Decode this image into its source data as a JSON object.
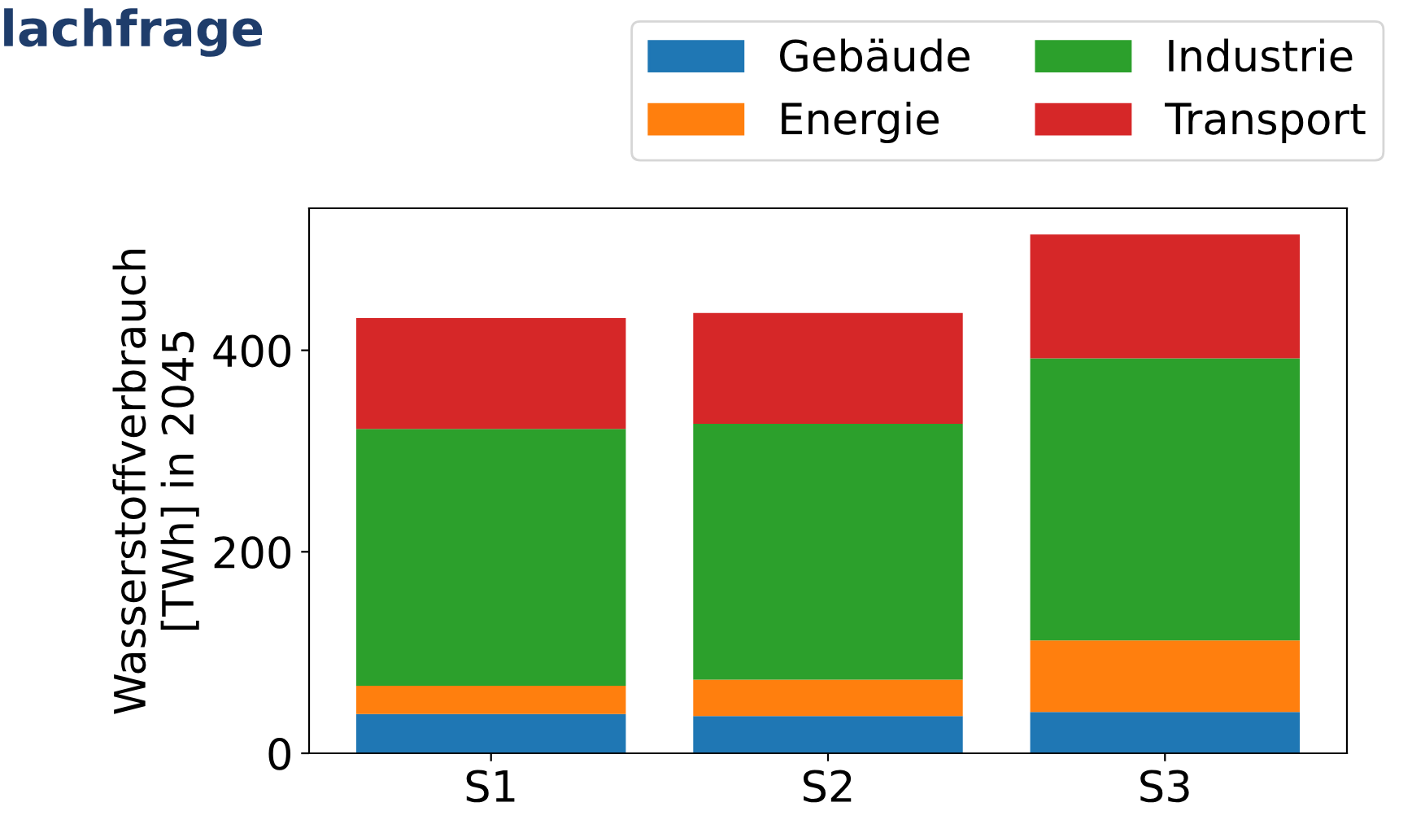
{
  "chart_data": {
    "type": "bar",
    "title": "lachfrage",
    "ylabel": "Wasserstoffverbrauch\n[TWh] in 2045",
    "categories": [
      "S1",
      "S2",
      "S3"
    ],
    "stacked": true,
    "series": [
      {
        "name": "Gebäude",
        "color": "#1f77b4",
        "values": [
          39,
          37,
          41
        ]
      },
      {
        "name": "Energie",
        "color": "#ff7f0e",
        "values": [
          28,
          36,
          71
        ]
      },
      {
        "name": "Industrie",
        "color": "#2ca02c",
        "values": [
          255,
          254,
          280
        ]
      },
      {
        "name": "Transport",
        "color": "#d62728",
        "values": [
          110,
          110,
          123
        ]
      }
    ],
    "ylim": [
      0,
      541
    ],
    "yticks": [
      0,
      200,
      400
    ],
    "grid": false,
    "legend": "top right"
  }
}
